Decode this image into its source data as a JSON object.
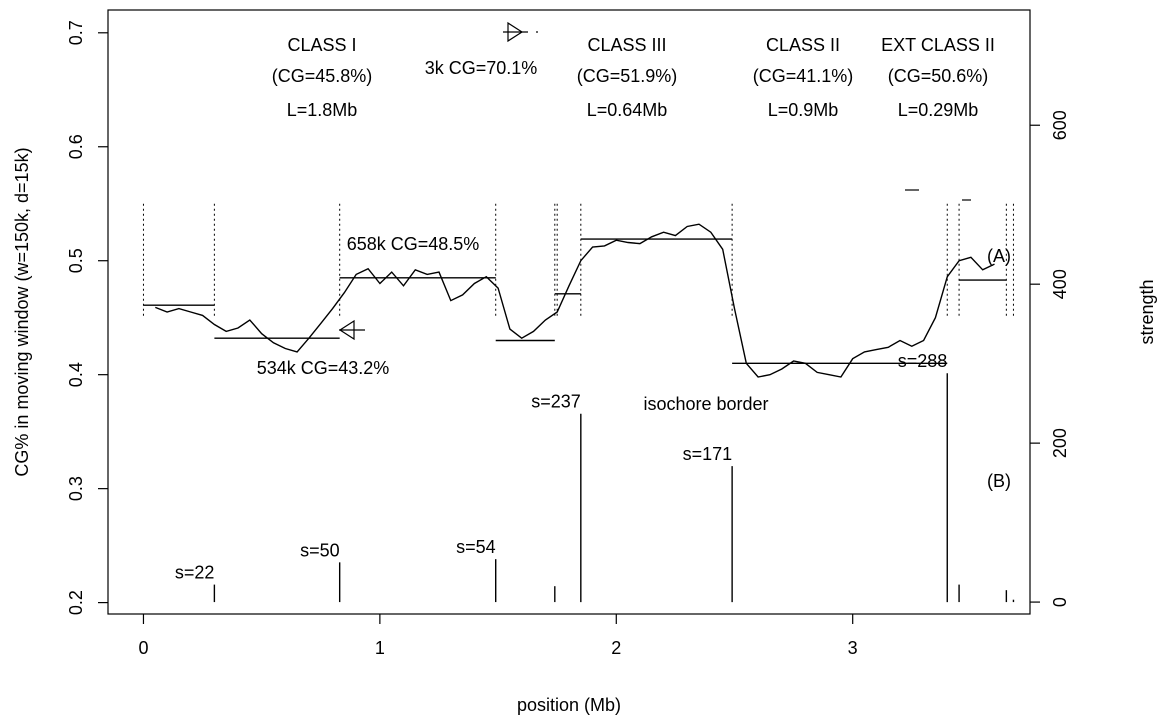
{
  "chart_data": {
    "type": "line",
    "xlabel": "position (Mb)",
    "ylabel": "CG% in moving window (w=150k, d=15k)",
    "y2label": "strength",
    "xlim": [
      -0.15,
      3.75
    ],
    "ylim": [
      0.19,
      0.72
    ],
    "y2lim": [
      -15,
      745
    ],
    "x_ticks": [
      0,
      1,
      2,
      3
    ],
    "y_ticks": [
      0.2,
      0.3,
      0.4,
      0.5,
      0.6,
      0.7
    ],
    "y2_ticks": [
      0,
      200,
      400,
      600
    ],
    "colors": {
      "line": "#000000",
      "background": "#ffffff"
    },
    "cg_curve": {
      "x": [
        0.05,
        0.1,
        0.15,
        0.2,
        0.25,
        0.3,
        0.35,
        0.4,
        0.45,
        0.5,
        0.55,
        0.6,
        0.65,
        0.7,
        0.75,
        0.8,
        0.85,
        0.9,
        0.95,
        1.0,
        1.05,
        1.1,
        1.15,
        1.2,
        1.25,
        1.3,
        1.35,
        1.4,
        1.45,
        1.5,
        1.55,
        1.6,
        1.65,
        1.7,
        1.75,
        1.8,
        1.85,
        1.9,
        1.95,
        2.0,
        2.05,
        2.1,
        2.15,
        2.2,
        2.25,
        2.3,
        2.35,
        2.4,
        2.45,
        2.5,
        2.55,
        2.6,
        2.65,
        2.7,
        2.75,
        2.8,
        2.85,
        2.9,
        2.95,
        3.0,
        3.05,
        3.1,
        3.15,
        3.2,
        3.25,
        3.3,
        3.35,
        3.4,
        3.45,
        3.5,
        3.55,
        3.6
      ],
      "y": [
        0.459,
        0.455,
        0.458,
        0.455,
        0.452,
        0.444,
        0.438,
        0.441,
        0.448,
        0.436,
        0.428,
        0.423,
        0.42,
        0.432,
        0.445,
        0.458,
        0.472,
        0.488,
        0.493,
        0.48,
        0.49,
        0.478,
        0.492,
        0.488,
        0.49,
        0.465,
        0.47,
        0.48,
        0.486,
        0.476,
        0.44,
        0.432,
        0.438,
        0.448,
        0.455,
        0.478,
        0.5,
        0.512,
        0.513,
        0.518,
        0.516,
        0.515,
        0.521,
        0.525,
        0.522,
        0.53,
        0.532,
        0.525,
        0.51,
        0.458,
        0.41,
        0.398,
        0.4,
        0.405,
        0.412,
        0.41,
        0.402,
        0.4,
        0.398,
        0.414,
        0.42,
        0.422,
        0.424,
        0.43,
        0.425,
        0.43,
        0.45,
        0.486,
        0.5,
        0.503,
        0.492,
        0.497
      ]
    },
    "segment_means": [
      {
        "x": [
          0.0,
          0.3
        ],
        "y": 0.461
      },
      {
        "x": [
          0.3,
          0.83
        ],
        "y": 0.432
      },
      {
        "x": [
          0.83,
          1.49
        ],
        "y": 0.485
      },
      {
        "x": [
          1.49,
          1.74
        ],
        "y": 0.43
      },
      {
        "x": [
          1.74,
          1.85
        ],
        "y": 0.471
      },
      {
        "x": [
          1.85,
          2.49
        ],
        "y": 0.519
      },
      {
        "x": [
          2.49,
          3.4
        ],
        "y": 0.41
      },
      {
        "x": [
          3.45,
          3.65
        ],
        "y": 0.483
      }
    ],
    "segment_borders": [
      0.0,
      0.3,
      0.83,
      1.49,
      1.74,
      1.75,
      1.85,
      2.49,
      3.4,
      3.45,
      3.65,
      3.68
    ],
    "strength": {
      "x": [
        0.3,
        0.83,
        1.49,
        1.74,
        1.85,
        2.49,
        3.4,
        3.45,
        3.65,
        3.68
      ],
      "values": [
        22,
        50,
        54,
        20,
        237,
        171,
        288,
        22,
        15,
        3
      ],
      "labels": [
        "s=22",
        "s=50",
        "s=54",
        "",
        "s=237",
        "s=171",
        "s=288",
        "",
        "",
        ""
      ]
    },
    "annotations": {
      "class1": {
        "name": "CLASS I",
        "cg": "(CG=45.8%)",
        "len": "L=1.8Mb"
      },
      "class3": {
        "name": "CLASS III",
        "cg": "(CG=51.9%)",
        "len": "L=0.64Mb"
      },
      "class2": {
        "name": "CLASS II",
        "cg": "(CG=41.1%)",
        "len": "L=0.9Mb"
      },
      "ext_class2": {
        "name": "EXT CLASS II",
        "cg": "(CG=50.6%)",
        "len": "L=0.29Mb"
      },
      "gene_3k": "3k CG=70.1%",
      "gene_658k": "658k CG=48.5%",
      "gene_534k": "534k CG=43.2%",
      "isochore": "isochore border",
      "panel_a": "(A)",
      "panel_b": "(B)"
    }
  }
}
